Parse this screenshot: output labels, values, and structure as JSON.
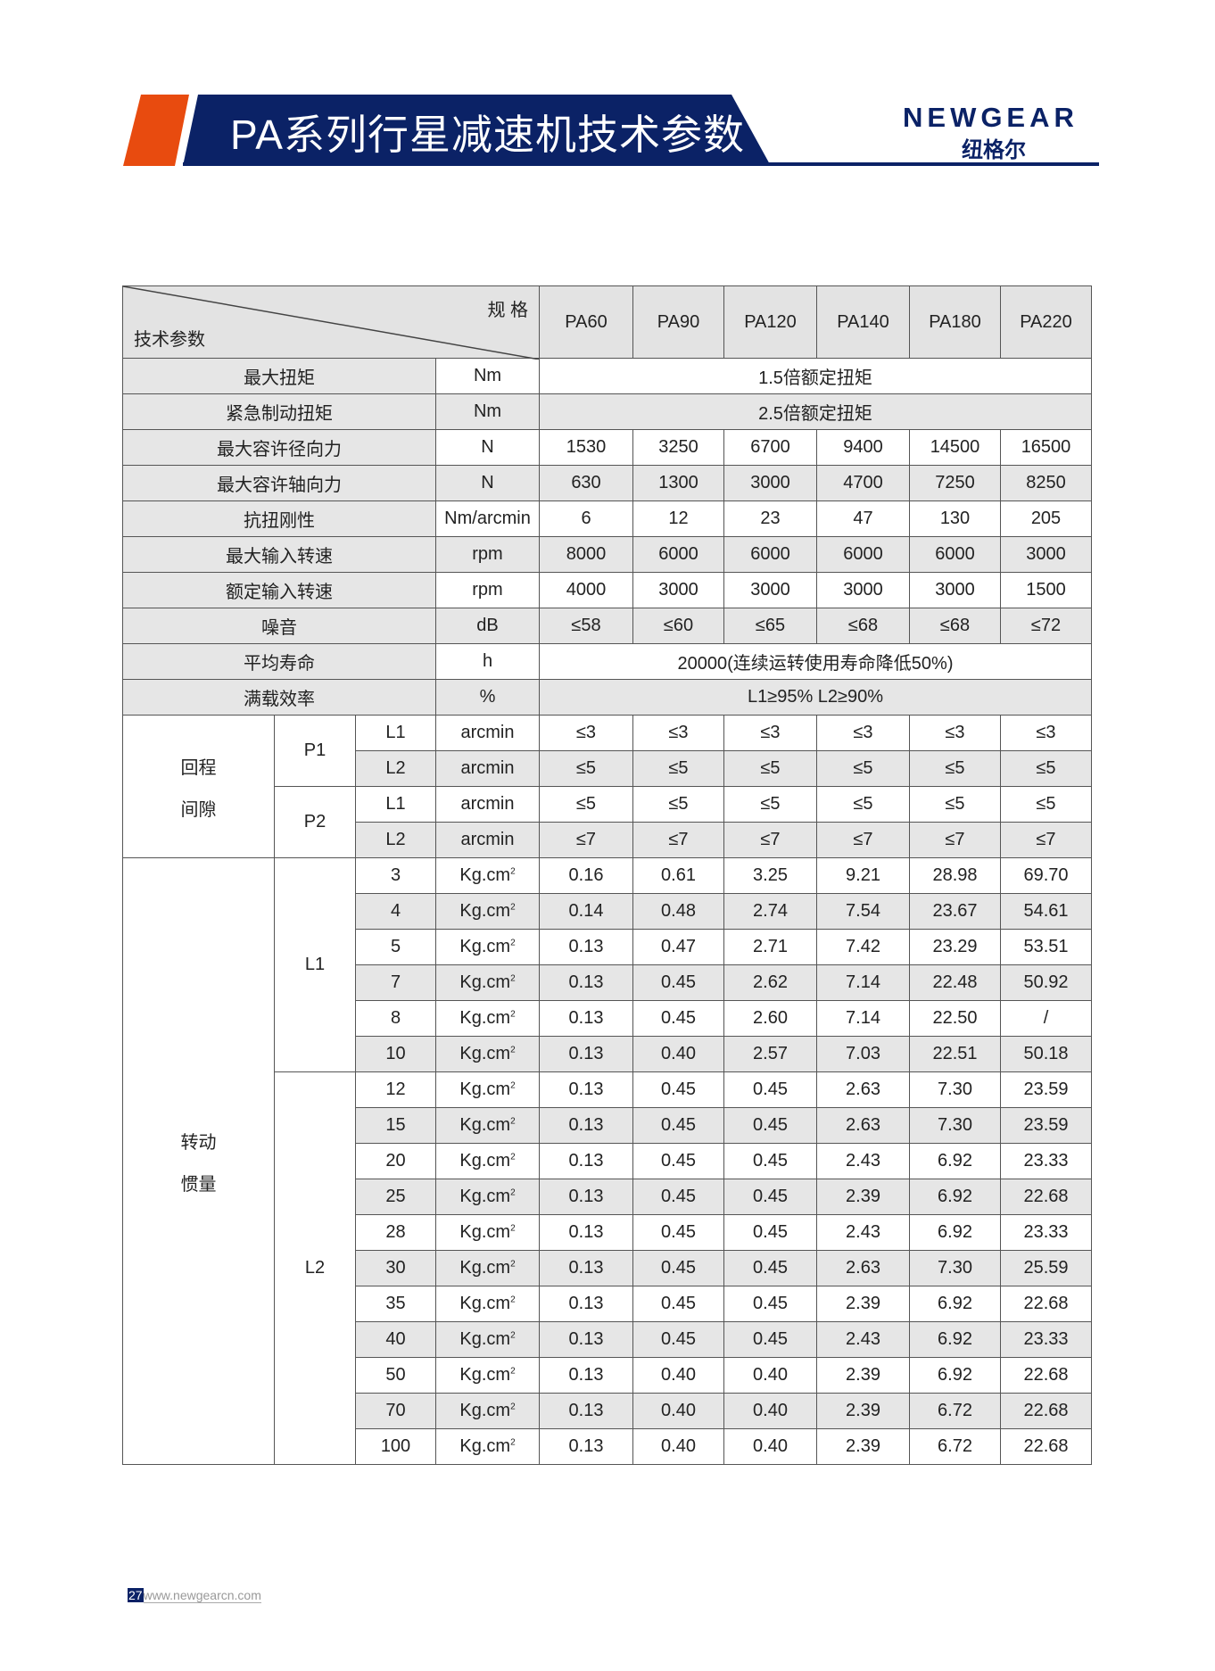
{
  "header": {
    "title": "PA系列行星减速机技术参数",
    "logo_en": "NEWGEAR",
    "logo_cn": "纽格尔",
    "colors": {
      "navy": "#0b2266",
      "orange": "#e84b0f"
    }
  },
  "table": {
    "corner_top": "规 格",
    "corner_bottom": "技术参数",
    "models": [
      "PA60",
      "PA90",
      "PA120",
      "PA140",
      "PA180",
      "PA220"
    ],
    "specs": [
      {
        "name": "最大扭矩",
        "unit": "Nm",
        "merged": "1.5倍额定扭矩"
      },
      {
        "name": "紧急制动扭矩",
        "unit": "Nm",
        "merged": "2.5倍额定扭矩"
      },
      {
        "name": "最大容许径向力",
        "unit": "N",
        "values": [
          "1530",
          "3250",
          "6700",
          "9400",
          "14500",
          "16500"
        ]
      },
      {
        "name": "最大容许轴向力",
        "unit": "N",
        "values": [
          "630",
          "1300",
          "3000",
          "4700",
          "7250",
          "8250"
        ]
      },
      {
        "name": "抗扭刚性",
        "unit": "Nm/arcmin",
        "values": [
          "6",
          "12",
          "23",
          "47",
          "130",
          "205"
        ]
      },
      {
        "name": "最大输入转速",
        "unit": "rpm",
        "values": [
          "8000",
          "6000",
          "6000",
          "6000",
          "6000",
          "3000"
        ]
      },
      {
        "name": "额定输入转速",
        "unit": "rpm",
        "values": [
          "4000",
          "3000",
          "3000",
          "3000",
          "3000",
          "1500"
        ]
      },
      {
        "name": "噪音",
        "unit": "dB",
        "values": [
          "≤58",
          "≤60",
          "≤65",
          "≤68",
          "≤68",
          "≤72"
        ]
      },
      {
        "name": "平均寿命",
        "unit": "h",
        "merged": "20000(连续运转使用寿命降低50%)"
      },
      {
        "name": "满载效率",
        "unit": "%",
        "merged": "L1≥95%   L2≥90%"
      }
    ],
    "backlash": {
      "label1": "回程",
      "label2": "间隙",
      "groups": [
        {
          "name": "P1",
          "rows": [
            {
              "stage": "L1",
              "unit": "arcmin",
              "values": [
                "≤3",
                "≤3",
                "≤3",
                "≤3",
                "≤3",
                "≤3"
              ]
            },
            {
              "stage": "L2",
              "unit": "arcmin",
              "values": [
                "≤5",
                "≤5",
                "≤5",
                "≤5",
                "≤5",
                "≤5"
              ]
            }
          ]
        },
        {
          "name": "P2",
          "rows": [
            {
              "stage": "L1",
              "unit": "arcmin",
              "values": [
                "≤5",
                "≤5",
                "≤5",
                "≤5",
                "≤5",
                "≤5"
              ]
            },
            {
              "stage": "L2",
              "unit": "arcmin",
              "values": [
                "≤7",
                "≤7",
                "≤7",
                "≤7",
                "≤7",
                "≤7"
              ]
            }
          ]
        }
      ]
    },
    "inertia": {
      "label1": "转动",
      "label2": "惯量",
      "unit": "Kg.cm",
      "unit_sup": "2",
      "groups": [
        {
          "name": "L1",
          "rows": [
            {
              "ratio": "3",
              "values": [
                "0.16",
                "0.61",
                "3.25",
                "9.21",
                "28.98",
                "69.70"
              ]
            },
            {
              "ratio": "4",
              "values": [
                "0.14",
                "0.48",
                "2.74",
                "7.54",
                "23.67",
                "54.61"
              ]
            },
            {
              "ratio": "5",
              "values": [
                "0.13",
                "0.47",
                "2.71",
                "7.42",
                "23.29",
                "53.51"
              ]
            },
            {
              "ratio": "7",
              "values": [
                "0.13",
                "0.45",
                "2.62",
                "7.14",
                "22.48",
                "50.92"
              ]
            },
            {
              "ratio": "8",
              "values": [
                "0.13",
                "0.45",
                "2.60",
                "7.14",
                "22.50",
                "/"
              ]
            },
            {
              "ratio": "10",
              "values": [
                "0.13",
                "0.40",
                "2.57",
                "7.03",
                "22.51",
                "50.18"
              ]
            }
          ]
        },
        {
          "name": "L2",
          "rows": [
            {
              "ratio": "12",
              "values": [
                "0.13",
                "0.45",
                "0.45",
                "2.63",
                "7.30",
                "23.59"
              ]
            },
            {
              "ratio": "15",
              "values": [
                "0.13",
                "0.45",
                "0.45",
                "2.63",
                "7.30",
                "23.59"
              ]
            },
            {
              "ratio": "20",
              "values": [
                "0.13",
                "0.45",
                "0.45",
                "2.43",
                "6.92",
                "23.33"
              ]
            },
            {
              "ratio": "25",
              "values": [
                "0.13",
                "0.45",
                "0.45",
                "2.39",
                "6.92",
                "22.68"
              ]
            },
            {
              "ratio": "28",
              "values": [
                "0.13",
                "0.45",
                "0.45",
                "2.43",
                "6.92",
                "23.33"
              ]
            },
            {
              "ratio": "30",
              "values": [
                "0.13",
                "0.45",
                "0.45",
                "2.63",
                "7.30",
                "25.59"
              ]
            },
            {
              "ratio": "35",
              "values": [
                "0.13",
                "0.45",
                "0.45",
                "2.39",
                "6.92",
                "22.68"
              ]
            },
            {
              "ratio": "40",
              "values": [
                "0.13",
                "0.45",
                "0.45",
                "2.43",
                "6.92",
                "23.33"
              ]
            },
            {
              "ratio": "50",
              "values": [
                "0.13",
                "0.40",
                "0.40",
                "2.39",
                "6.92",
                "22.68"
              ]
            },
            {
              "ratio": "70",
              "values": [
                "0.13",
                "0.40",
                "0.40",
                "2.39",
                "6.72",
                "22.68"
              ]
            },
            {
              "ratio": "100",
              "values": [
                "0.13",
                "0.40",
                "0.40",
                "2.39",
                "6.72",
                "22.68"
              ]
            }
          ]
        }
      ]
    }
  },
  "footer": {
    "page": "27",
    "url": "www.newgearcn.com"
  }
}
